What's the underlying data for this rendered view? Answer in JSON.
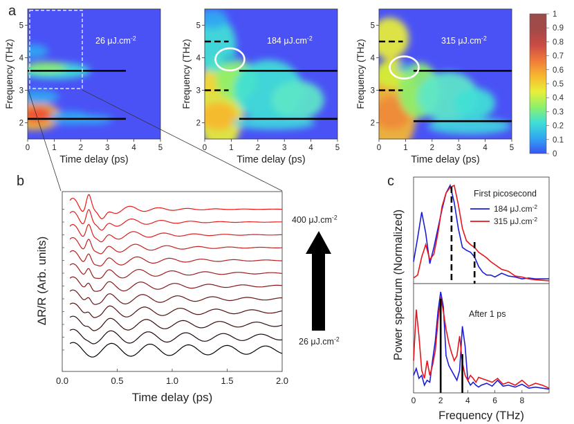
{
  "panel_labels": {
    "a": "a",
    "b": "b",
    "c": "c"
  },
  "colorbar": {
    "ticks": [
      "0",
      "0.1",
      "0.2",
      "0.3",
      "0.4",
      "0.5",
      "0.6",
      "0.7",
      "0.8",
      "0.9",
      "1"
    ],
    "stops": [
      "#3a53f5",
      "#31a6f2",
      "#3fe0d6",
      "#8df06b",
      "#e9ef38",
      "#f7b72f",
      "#ef7a3a",
      "#c94b45",
      "#a34a48",
      "#9a4c4a"
    ]
  },
  "colors": {
    "red": "#e8131a",
    "blue": "#1a1adb",
    "black": "#000000",
    "map_bg": "#4a52f6"
  },
  "chart_data": [
    {
      "id": "a1",
      "type": "heatmap",
      "annotation": "26 μJ.cm",
      "superscript": "-2",
      "xlabel": "Time delay (ps)",
      "ylabel": "Frequency (THz)",
      "xlim": [
        0,
        5
      ],
      "ylim": [
        1.5,
        5.5
      ],
      "xticks": [
        "0",
        "1",
        "2",
        "3",
        "4",
        "5"
      ],
      "yticks": [
        "2",
        "3",
        "4",
        "5"
      ],
      "solid_lines": [
        {
          "freq": 3.6,
          "t0": 0,
          "t1": 3.7
        },
        {
          "freq": 2.12,
          "t0": 0,
          "t1": 3.7
        }
      ],
      "dashed_lines": [],
      "circle": null
    },
    {
      "id": "a2",
      "type": "heatmap",
      "annotation": "184 μJ.cm",
      "superscript": "-2",
      "xlabel": "Time delay (ps)",
      "ylabel": "Frequency (THz)",
      "xlim": [
        0,
        5
      ],
      "ylim": [
        1.5,
        5.5
      ],
      "xticks": [
        "0",
        "1",
        "2",
        "3",
        "4",
        "5"
      ],
      "yticks": [
        "2",
        "3",
        "4",
        "5"
      ],
      "solid_lines": [
        {
          "freq": 3.6,
          "t0": 1.3,
          "t1": 5
        },
        {
          "freq": 2.12,
          "t0": 1.3,
          "t1": 5
        }
      ],
      "dashed_lines": [
        {
          "freq": 4.5,
          "t0": 0,
          "t1": 0.9
        },
        {
          "freq": 3.0,
          "t0": 0,
          "t1": 0.9
        }
      ],
      "circle": {
        "t": 0.95,
        "freq": 3.95
      }
    },
    {
      "id": "a3",
      "type": "heatmap",
      "annotation": "315 μJ.cm",
      "superscript": "-2",
      "xlabel": "Time delay (ps)",
      "ylabel": "Frequency (THz)",
      "xlim": [
        0,
        5
      ],
      "ylim": [
        1.5,
        5.5
      ],
      "xticks": [
        "0",
        "1",
        "2",
        "3",
        "4",
        "5"
      ],
      "yticks": [
        "2",
        "3",
        "4",
        "5"
      ],
      "solid_lines": [
        {
          "freq": 3.6,
          "t0": 1.3,
          "t1": 5
        },
        {
          "freq": 2.05,
          "t0": 1.3,
          "t1": 5
        }
      ],
      "dashed_lines": [
        {
          "freq": 4.5,
          "t0": 0,
          "t1": 0.9
        },
        {
          "freq": 3.0,
          "t0": 0,
          "t1": 0.9
        }
      ],
      "circle": {
        "t": 0.95,
        "freq": 3.7
      }
    },
    {
      "id": "b",
      "type": "line",
      "xlabel": "Time delay (ps)",
      "ylabel": "ΔR/R (Arb. units)",
      "xlim": [
        0,
        2.0
      ],
      "xticks": [
        0.0,
        0.5,
        1.0,
        1.5,
        2.0
      ],
      "xtick_labels": [
        "0.0",
        "0.5",
        "1.0",
        "1.5",
        "2.0"
      ],
      "n_traces": 12,
      "top_label": "400 μJ.cm",
      "bottom_label": "26 μJ.cm",
      "superscript": "-2",
      "trace_colors": [
        "#000000",
        "#1c0606",
        "#350b0b",
        "#4e0f0f",
        "#681414",
        "#821818",
        "#9b1c1c",
        "#b41f1f",
        "#c71f1f",
        "#d91e1e",
        "#e81b1b",
        "#f01414"
      ]
    },
    {
      "id": "c1",
      "type": "line",
      "title": "First picosecond",
      "xlim": [
        0,
        10
      ],
      "legend": [
        {
          "name": "184 μJ.cm",
          "superscript": "-2",
          "color": "#1a1adb"
        },
        {
          "name": "315 μJ.cm",
          "superscript": "-2",
          "color": "#e8131a"
        }
      ],
      "series": [
        {
          "name": "184",
          "x": [
            0,
            0.3,
            0.6,
            0.9,
            1.2,
            1.5,
            1.8,
            2.1,
            2.4,
            2.7,
            3.0,
            3.3,
            3.6,
            3.9,
            4.2,
            4.5,
            4.8,
            5.1,
            5.4,
            5.7,
            6.0,
            6.5,
            7.0,
            7.5,
            8.0,
            8.5,
            9.0,
            10.0
          ],
          "values": [
            0.2,
            0.45,
            0.72,
            0.5,
            0.18,
            0.35,
            0.55,
            0.75,
            0.92,
            1.0,
            0.82,
            0.55,
            0.35,
            0.32,
            0.3,
            0.25,
            0.15,
            0.09,
            0.06,
            0.06,
            0.04,
            0.08,
            0.05,
            0.04,
            0.02,
            0.03,
            0.02,
            0.02
          ]
        },
        {
          "name": "315",
          "x": [
            0,
            0.3,
            0.6,
            0.9,
            1.2,
            1.5,
            1.8,
            2.1,
            2.4,
            2.7,
            3.0,
            3.3,
            3.6,
            3.9,
            4.2,
            4.5,
            4.8,
            5.1,
            5.4,
            5.7,
            6.0,
            6.5,
            7.0,
            7.5,
            8.0,
            8.5,
            9.0,
            10.0
          ],
          "values": [
            0.03,
            0.06,
            0.25,
            0.38,
            0.22,
            0.28,
            0.5,
            0.78,
            0.92,
            0.98,
            1.0,
            0.8,
            0.55,
            0.42,
            0.38,
            0.35,
            0.3,
            0.27,
            0.24,
            0.2,
            0.17,
            0.12,
            0.1,
            0.05,
            0.04,
            0.02,
            0.01,
            0.0
          ]
        }
      ],
      "dashed_markers": [
        2.8,
        4.5
      ]
    },
    {
      "id": "c2",
      "type": "line",
      "title": "After 1 ps",
      "xlabel": "Frequency (THz)",
      "ylabel": "Power spectrum (Normalized)",
      "xlim": [
        0,
        10
      ],
      "xticks": [
        0,
        2,
        4,
        6,
        8
      ],
      "xtick_labels": [
        "0",
        "2",
        "4",
        "6",
        "8"
      ],
      "series": [
        {
          "name": "184",
          "x": [
            0,
            0.2,
            0.4,
            0.6,
            0.8,
            1.0,
            1.2,
            1.4,
            1.6,
            1.8,
            2.0,
            2.2,
            2.4,
            2.6,
            2.8,
            3.0,
            3.2,
            3.4,
            3.6,
            3.8,
            4.0,
            4.2,
            4.4,
            4.6,
            4.8,
            5.0,
            5.4,
            5.8,
            6.2,
            6.6,
            7.0,
            7.5,
            8.0,
            8.5,
            9.0,
            9.5,
            10.0
          ],
          "values": [
            0.15,
            0.22,
            0.12,
            0.15,
            0.05,
            0.1,
            0.08,
            0.3,
            0.5,
            0.8,
            1.0,
            0.85,
            0.35,
            0.25,
            0.2,
            0.15,
            0.1,
            0.2,
            0.65,
            0.45,
            0.1,
            0.05,
            0.08,
            0.05,
            0.03,
            0.05,
            0.07,
            0.04,
            0.1,
            0.04,
            0.05,
            0.03,
            0.06,
            0.02,
            0.03,
            0.02,
            0.01
          ]
        },
        {
          "name": "315",
          "x": [
            0,
            0.2,
            0.4,
            0.6,
            0.8,
            1.0,
            1.2,
            1.4,
            1.6,
            1.8,
            2.0,
            2.2,
            2.4,
            2.6,
            2.8,
            3.0,
            3.2,
            3.4,
            3.6,
            3.8,
            4.0,
            4.2,
            4.4,
            4.6,
            4.8,
            5.0,
            5.4,
            5.8,
            6.2,
            6.6,
            7.0,
            7.5,
            8.0,
            8.5,
            9.0,
            9.5,
            10.0
          ],
          "values": [
            0.3,
            0.82,
            0.55,
            0.2,
            0.12,
            0.3,
            0.15,
            0.25,
            0.4,
            0.7,
            0.95,
            0.8,
            0.62,
            0.48,
            0.38,
            0.3,
            0.35,
            0.55,
            0.28,
            0.15,
            0.1,
            0.15,
            0.12,
            0.08,
            0.13,
            0.12,
            0.1,
            0.08,
            0.12,
            0.06,
            0.08,
            0.05,
            0.1,
            0.04,
            0.07,
            0.05,
            0.02
          ]
        }
      ],
      "solid_markers": [
        2.0,
        3.6
      ]
    }
  ]
}
